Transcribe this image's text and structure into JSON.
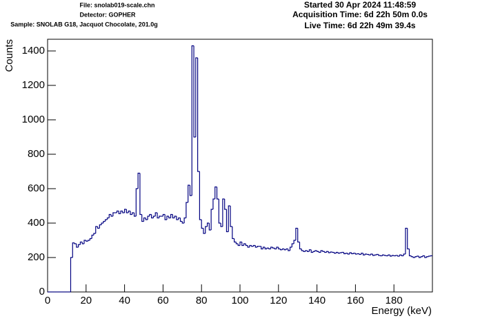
{
  "chart_data": {
    "type": "histogram",
    "header_left": [
      "File: snolab019-scale.chn",
      "Detector: GOPHER",
      "Sample: SNOLAB G18, Jacquot Chocolate, 201.0g"
    ],
    "header_right": [
      "Started 30 Apr 2024 11:48:59",
      "Acquisition Time: 6d 22h 50m 0.0s",
      "Live Time: 6d 22h 49m 39.4s"
    ],
    "x_label": "Energy (keV)",
    "y_label": "Counts",
    "color": "#000080",
    "xlim": [
      0,
      200
    ],
    "ylim": [
      0,
      1468
    ],
    "xticks": [
      0,
      20,
      40,
      60,
      80,
      100,
      120,
      140,
      160,
      180
    ],
    "yticks": [
      0,
      200,
      400,
      600,
      800,
      1000,
      1200,
      1400
    ],
    "bins": [
      0,
      1,
      2,
      3,
      4,
      5,
      6,
      7,
      8,
      9,
      10,
      11,
      12,
      13,
      14,
      15,
      16,
      17,
      18,
      19,
      20,
      21,
      22,
      23,
      24,
      25,
      26,
      27,
      28,
      29,
      30,
      31,
      32,
      33,
      34,
      35,
      36,
      37,
      38,
      39,
      40,
      41,
      42,
      43,
      44,
      45,
      46,
      47,
      48,
      49,
      50,
      51,
      52,
      53,
      54,
      55,
      56,
      57,
      58,
      59,
      60,
      61,
      62,
      63,
      64,
      65,
      66,
      67,
      68,
      69,
      70,
      71,
      72,
      73,
      74,
      75,
      76,
      77,
      78,
      79,
      80,
      81,
      82,
      83,
      84,
      85,
      86,
      87,
      88,
      89,
      90,
      91,
      92,
      93,
      94,
      95,
      96,
      97,
      98,
      99,
      100,
      101,
      102,
      103,
      104,
      105,
      106,
      107,
      108,
      109,
      110,
      111,
      112,
      113,
      114,
      115,
      116,
      117,
      118,
      119,
      120,
      121,
      122,
      123,
      124,
      125,
      126,
      127,
      128,
      129,
      130,
      131,
      132,
      133,
      134,
      135,
      136,
      137,
      138,
      139,
      140,
      141,
      142,
      143,
      144,
      145,
      146,
      147,
      148,
      149,
      150,
      151,
      152,
      153,
      154,
      155,
      156,
      157,
      158,
      159,
      160,
      161,
      162,
      163,
      164,
      165,
      166,
      167,
      168,
      169,
      170,
      171,
      172,
      173,
      174,
      175,
      176,
      177,
      178,
      179,
      180,
      181,
      182,
      183,
      184,
      185,
      186,
      187,
      188,
      189,
      190,
      191,
      192,
      193,
      194,
      195,
      196,
      197,
      198,
      199,
      200
    ],
    "values": [
      0,
      0,
      0,
      0,
      0,
      0,
      0,
      0,
      0,
      0,
      0,
      0,
      200,
      285,
      280,
      260,
      275,
      290,
      280,
      300,
      295,
      300,
      310,
      330,
      340,
      380,
      370,
      390,
      400,
      410,
      420,
      430,
      450,
      440,
      460,
      460,
      470,
      455,
      470,
      460,
      480,
      460,
      470,
      450,
      460,
      440,
      600,
      690,
      450,
      410,
      430,
      420,
      440,
      450,
      430,
      440,
      460,
      430,
      440,
      440,
      450,
      420,
      440,
      430,
      450,
      430,
      440,
      420,
      430,
      410,
      400,
      430,
      520,
      620,
      560,
      1430,
      900,
      1360,
      700,
      420,
      370,
      340,
      380,
      400,
      360,
      480,
      540,
      610,
      540,
      400,
      380,
      540,
      480,
      350,
      500,
      380,
      310,
      290,
      280,
      270,
      290,
      270,
      280,
      270,
      260,
      270,
      265,
      270,
      260,
      265,
      265,
      250,
      260,
      250,
      255,
      250,
      260,
      255,
      250,
      260,
      250,
      245,
      250,
      245,
      250,
      240,
      260,
      280,
      300,
      370,
      290,
      250,
      240,
      235,
      240,
      235,
      245,
      230,
      235,
      240,
      235,
      230,
      240,
      235,
      230,
      235,
      228,
      232,
      230,
      225,
      230,
      225,
      228,
      230,
      222,
      225,
      220,
      228,
      222,
      225,
      220,
      222,
      218,
      225,
      215,
      220,
      218,
      215,
      220,
      212,
      215,
      218,
      212,
      210,
      215,
      212,
      210,
      215,
      208,
      212,
      210,
      212,
      208,
      215,
      210,
      220,
      370,
      250,
      210,
      205,
      200,
      205,
      208,
      200,
      205,
      210,
      200,
      205,
      208,
      210
    ]
  }
}
